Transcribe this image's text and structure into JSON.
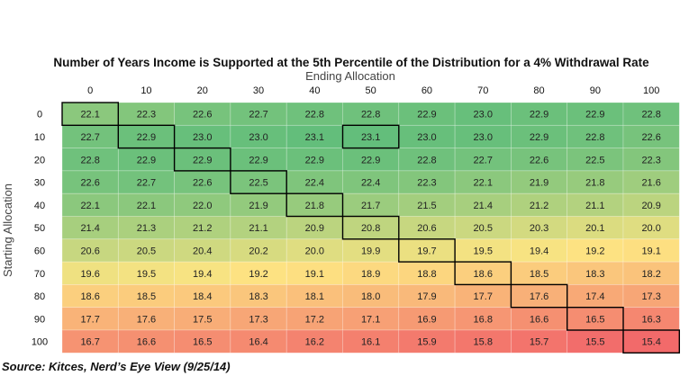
{
  "chart_data": {
    "type": "heatmap",
    "title": "Number of Years Income is Supported at the 5th Percentile of the Distribution for a 4% Withdrawal Rate",
    "xlabel": "Ending Allocation",
    "ylabel": "Starting Allocation",
    "columns": [
      "0",
      "10",
      "20",
      "30",
      "40",
      "50",
      "60",
      "70",
      "80",
      "90",
      "100"
    ],
    "rows": [
      "0",
      "10",
      "20",
      "30",
      "40",
      "50",
      "60",
      "70",
      "80",
      "90",
      "100"
    ],
    "values": [
      [
        22.1,
        22.3,
        22.6,
        22.7,
        22.8,
        22.8,
        22.9,
        23.0,
        22.9,
        22.9,
        22.8
      ],
      [
        22.7,
        22.9,
        23.0,
        23.0,
        23.1,
        23.1,
        23.0,
        23.0,
        22.9,
        22.8,
        22.6
      ],
      [
        22.8,
        22.9,
        22.9,
        22.9,
        22.9,
        22.9,
        22.8,
        22.7,
        22.6,
        22.5,
        22.3
      ],
      [
        22.6,
        22.7,
        22.6,
        22.5,
        22.4,
        22.4,
        22.3,
        22.1,
        21.9,
        21.8,
        21.6
      ],
      [
        22.1,
        22.1,
        22.0,
        21.9,
        21.8,
        21.7,
        21.5,
        21.4,
        21.2,
        21.1,
        20.9
      ],
      [
        21.4,
        21.3,
        21.2,
        21.1,
        20.9,
        20.8,
        20.6,
        20.5,
        20.3,
        20.1,
        20.0
      ],
      [
        20.6,
        20.5,
        20.4,
        20.2,
        20.0,
        19.9,
        19.7,
        19.5,
        19.4,
        19.2,
        19.1
      ],
      [
        19.6,
        19.5,
        19.4,
        19.2,
        19.1,
        18.9,
        18.8,
        18.6,
        18.5,
        18.3,
        18.2
      ],
      [
        18.6,
        18.5,
        18.4,
        18.3,
        18.1,
        18.0,
        17.9,
        17.7,
        17.6,
        17.4,
        17.3
      ],
      [
        17.7,
        17.6,
        17.5,
        17.3,
        17.2,
        17.1,
        16.9,
        16.8,
        16.6,
        16.5,
        16.3
      ],
      [
        16.7,
        16.6,
        16.5,
        16.4,
        16.2,
        16.1,
        15.9,
        15.8,
        15.7,
        15.5,
        15.4
      ]
    ],
    "highlighted_cells": [
      [
        0,
        0
      ],
      [
        1,
        1
      ],
      [
        2,
        2
      ],
      [
        3,
        3
      ],
      [
        4,
        4
      ],
      [
        5,
        5
      ],
      [
        6,
        6
      ],
      [
        7,
        7
      ],
      [
        8,
        8
      ],
      [
        9,
        9
      ],
      [
        10,
        10
      ],
      [
        1,
        5
      ]
    ],
    "colors": {
      "low": "#f26a6a",
      "mid": "#fde482",
      "high": "#63be7b",
      "border": "#000000"
    },
    "grid": true,
    "value_format": "one decimal"
  },
  "source": "Source: Kitces, Nerd’s Eye View (9/25/14)"
}
